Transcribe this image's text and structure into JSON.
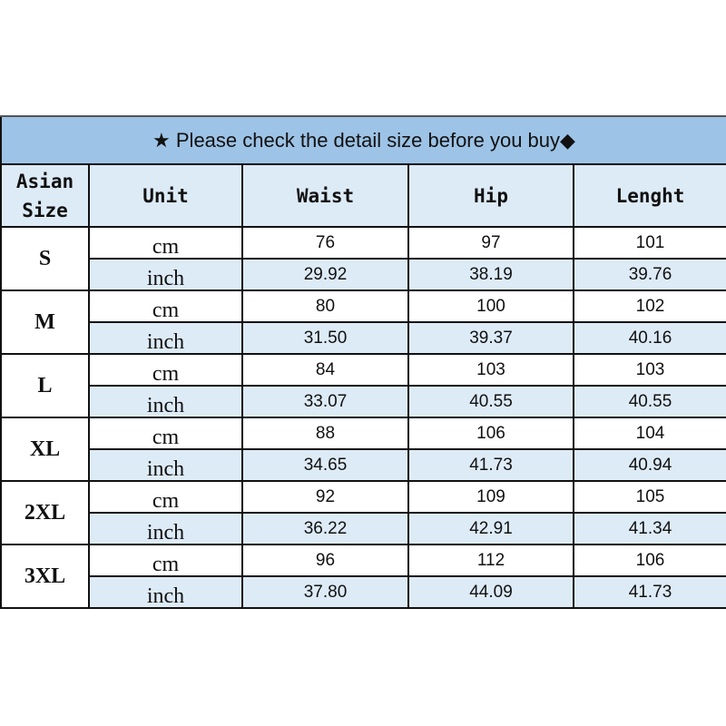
{
  "title": "★ Please check the detail size before you buy◆",
  "headers": [
    "Asian Size",
    "Unit",
    "Waist",
    "Hip",
    "Lenght"
  ],
  "rows": [
    {
      "size": "S",
      "cm": [
        "76",
        "97",
        "101"
      ],
      "inch": [
        "29.92",
        "38.19",
        "39.76"
      ]
    },
    {
      "size": "M",
      "cm": [
        "80",
        "100",
        "102"
      ],
      "inch": [
        "31.50",
        "39.37",
        "40.16"
      ]
    },
    {
      "size": "L",
      "cm": [
        "84",
        "103",
        "103"
      ],
      "inch": [
        "33.07",
        "40.55",
        "40.55"
      ]
    },
    {
      "size": "XL",
      "cm": [
        "88",
        "106",
        "104"
      ],
      "inch": [
        "34.65",
        "41.73",
        "40.94"
      ]
    },
    {
      "size": "2XL",
      "cm": [
        "92",
        "109",
        "105"
      ],
      "inch": [
        "36.22",
        "42.91",
        "41.34"
      ]
    },
    {
      "size": "3XL",
      "cm": [
        "96",
        "112",
        "106"
      ],
      "inch": [
        "37.80",
        "44.09",
        "41.73"
      ]
    }
  ],
  "units": {
    "cm": "cm",
    "inch": "inch"
  }
}
